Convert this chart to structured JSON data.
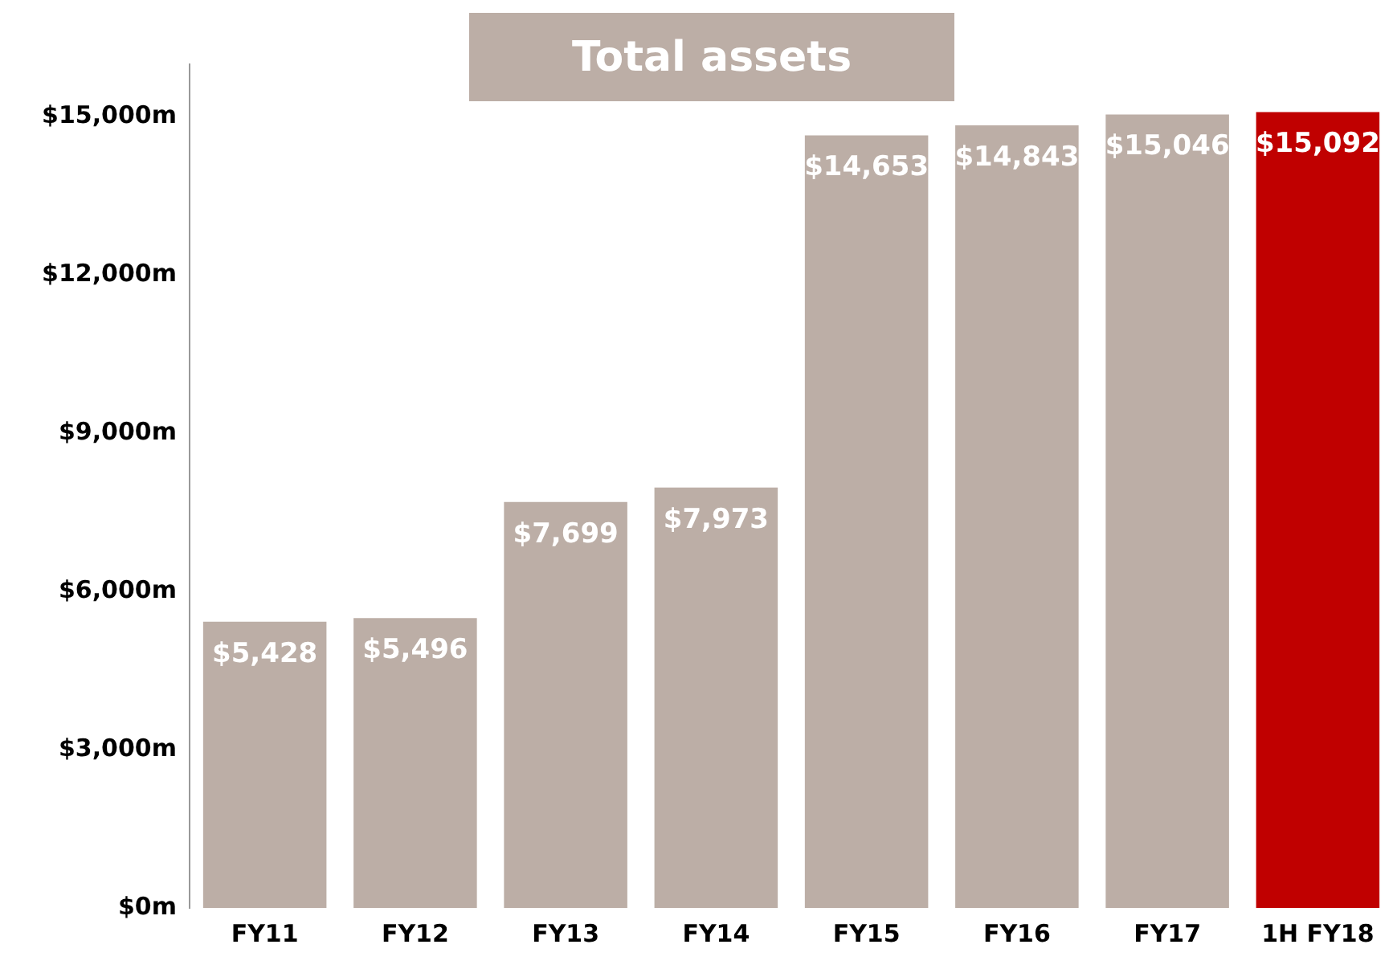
{
  "chart_data": {
    "type": "bar",
    "title": "Total assets",
    "categories": [
      "FY11",
      "FY12",
      "FY13",
      "FY14",
      "FY15",
      "FY16",
      "FY17",
      "1H FY18"
    ],
    "values": [
      5428,
      5496,
      7699,
      7973,
      14653,
      14843,
      15046,
      15092
    ],
    "colors": [
      "#bcaea6",
      "#bcaea6",
      "#bcaea6",
      "#bcaea6",
      "#bcaea6",
      "#bcaea6",
      "#bcaea6",
      "#c00000"
    ],
    "value_labels": [
      "$5,428",
      "$5,496",
      "$7,699",
      "$7,973",
      "$14,653",
      "$14,843",
      "$15,046",
      "$15,092"
    ],
    "ylim": [
      0,
      16000
    ],
    "yticks": [
      {
        "value": 0,
        "label": "$0m"
      },
      {
        "value": 3000,
        "label": "$3,000m"
      },
      {
        "value": 6000,
        "label": "$6,000m"
      },
      {
        "value": 9000,
        "label": "$9,000m"
      },
      {
        "value": 12000,
        "label": "$12,000m"
      },
      {
        "value": 15000,
        "label": "$15,000m"
      }
    ],
    "grid": false,
    "legend": false
  }
}
